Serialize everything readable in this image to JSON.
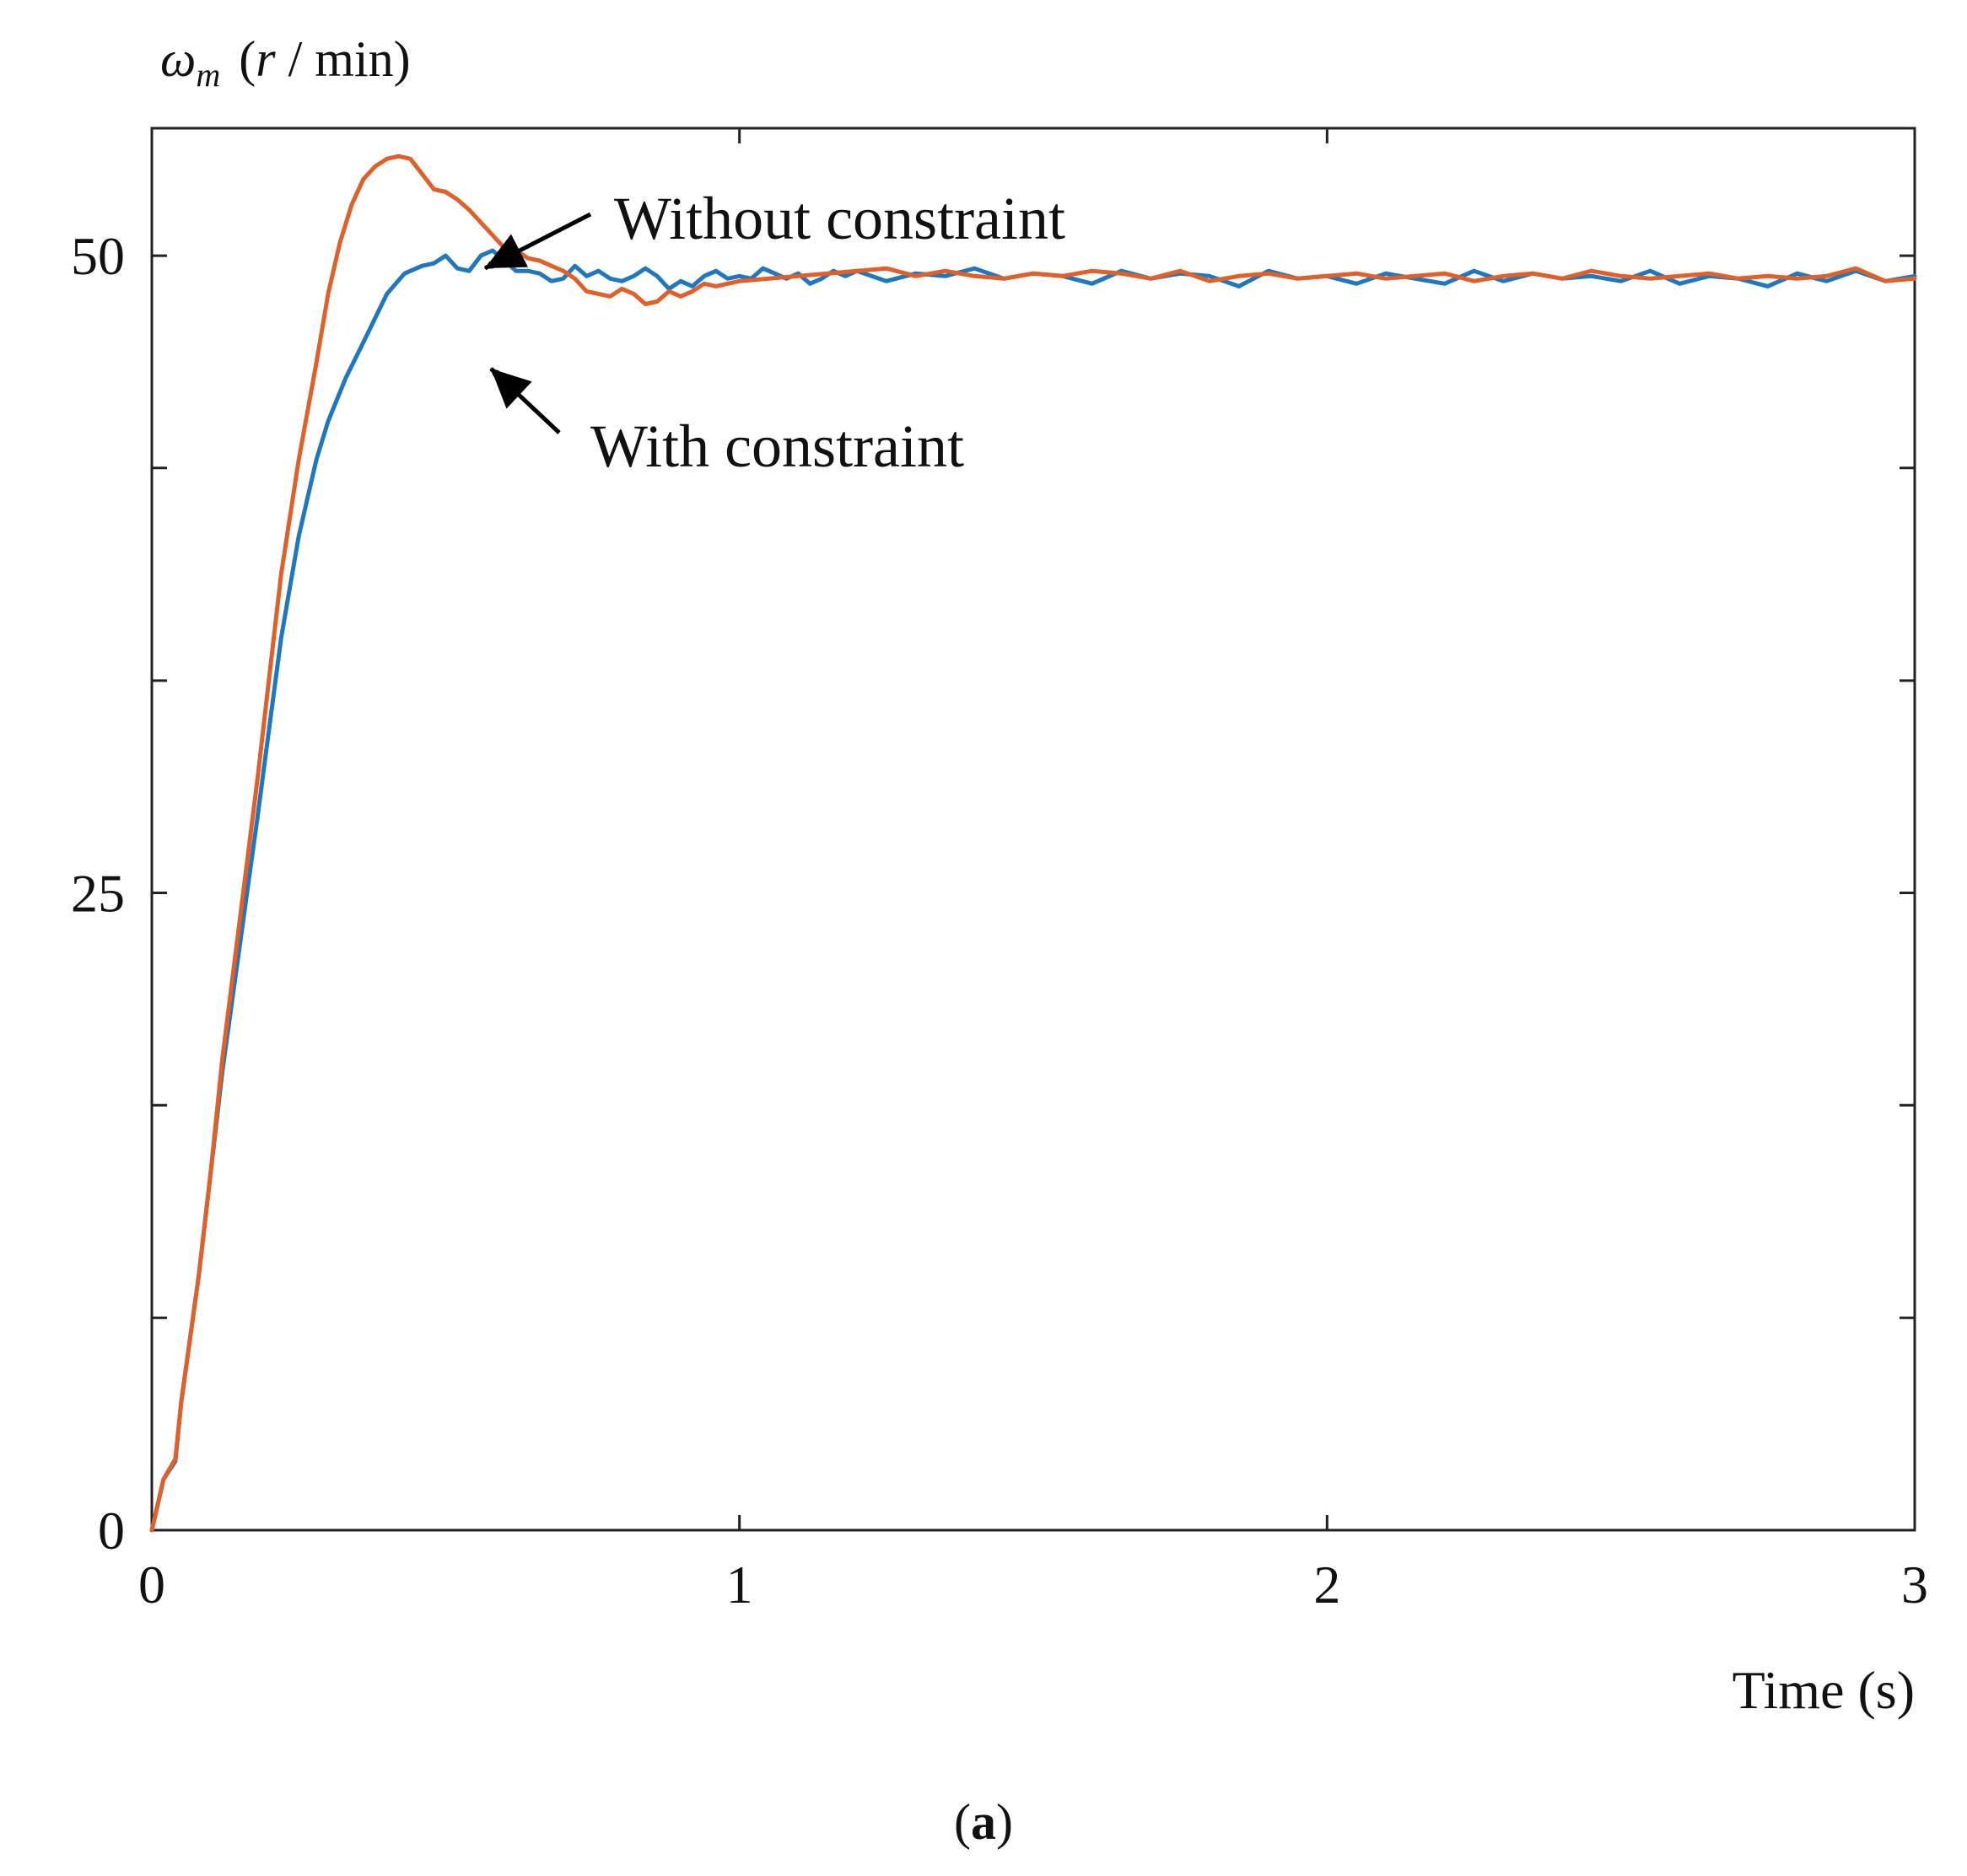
{
  "chart_data": {
    "type": "line",
    "title": "",
    "xlabel": "Time (s)",
    "ylabel": {
      "symbol": "ω",
      "subscript": "m",
      "unit_open": "(",
      "unit_var": "r",
      "unit_rest": " / min)"
    },
    "xlim": [
      0,
      3
    ],
    "ylim": [
      0,
      55
    ],
    "xticks": [
      0,
      1,
      2,
      3
    ],
    "xtick_labels": [
      "0",
      "1",
      "2",
      "3"
    ],
    "yticks": [
      0,
      25,
      50
    ],
    "ytick_labels": [
      "0",
      "25",
      "50"
    ],
    "yminor_ticks": [
      8.33,
      16.67,
      33.33,
      41.67
    ],
    "grid": false,
    "caption": {
      "open": "(",
      "letter": "a",
      "close": ")"
    },
    "annotations": [
      {
        "text": "Without constraint",
        "series": "Without constraint",
        "point": [
          0.54,
          52.5
        ]
      },
      {
        "text": "With constraint",
        "series": "With constraint",
        "point": [
          0.55,
          49.5
        ]
      }
    ],
    "series": [
      {
        "name": "With constraint",
        "color": "#1f77c0",
        "x": [
          0,
          0.02,
          0.04,
          0.05,
          0.08,
          0.1,
          0.12,
          0.15,
          0.18,
          0.2,
          0.22,
          0.25,
          0.28,
          0.3,
          0.33,
          0.36,
          0.4,
          0.43,
          0.46,
          0.48,
          0.5,
          0.52,
          0.54,
          0.56,
          0.58,
          0.6,
          0.62,
          0.64,
          0.66,
          0.68,
          0.7,
          0.72,
          0.74,
          0.76,
          0.78,
          0.8,
          0.82,
          0.84,
          0.86,
          0.88,
          0.9,
          0.92,
          0.94,
          0.96,
          0.98,
          1.0,
          1.02,
          1.04,
          1.06,
          1.08,
          1.1,
          1.12,
          1.14,
          1.16,
          1.18,
          1.2,
          1.25,
          1.3,
          1.35,
          1.4,
          1.45,
          1.5,
          1.55,
          1.6,
          1.65,
          1.7,
          1.75,
          1.8,
          1.85,
          1.9,
          1.95,
          2.0,
          2.05,
          2.1,
          2.15,
          2.2,
          2.25,
          2.3,
          2.35,
          2.4,
          2.45,
          2.5,
          2.55,
          2.6,
          2.65,
          2.7,
          2.75,
          2.8,
          2.85,
          2.9,
          2.95,
          3.0
        ],
        "y": [
          0,
          2.0,
          2.7,
          5.0,
          10.0,
          14.0,
          18.0,
          23.0,
          28.0,
          31.5,
          35.0,
          39.0,
          42.0,
          43.5,
          45.2,
          46.6,
          48.5,
          49.3,
          49.6,
          49.7,
          50.0,
          49.5,
          49.4,
          50.0,
          50.2,
          49.8,
          49.4,
          49.4,
          49.3,
          49.0,
          49.1,
          49.6,
          49.2,
          49.4,
          49.1,
          49.0,
          49.2,
          49.5,
          49.2,
          48.7,
          49.0,
          48.8,
          49.2,
          49.4,
          49.1,
          49.2,
          49.1,
          49.5,
          49.3,
          49.1,
          49.3,
          48.9,
          49.1,
          49.4,
          49.2,
          49.4,
          49.0,
          49.3,
          49.2,
          49.5,
          49.1,
          49.3,
          49.2,
          48.9,
          49.4,
          49.1,
          49.3,
          49.2,
          48.8,
          49.4,
          49.1,
          49.2,
          48.9,
          49.3,
          49.1,
          48.9,
          49.4,
          49.0,
          49.3,
          49.1,
          49.2,
          49.0,
          49.4,
          48.9,
          49.2,
          49.1,
          48.8,
          49.3,
          49.0,
          49.4,
          49.0,
          49.2
        ]
      },
      {
        "name": "Without constraint",
        "color": "#e0602a",
        "x": [
          0,
          0.02,
          0.04,
          0.05,
          0.08,
          0.1,
          0.12,
          0.15,
          0.18,
          0.2,
          0.22,
          0.25,
          0.28,
          0.3,
          0.32,
          0.34,
          0.36,
          0.38,
          0.4,
          0.42,
          0.44,
          0.46,
          0.48,
          0.5,
          0.52,
          0.54,
          0.56,
          0.58,
          0.6,
          0.62,
          0.64,
          0.66,
          0.68,
          0.7,
          0.72,
          0.74,
          0.76,
          0.78,
          0.8,
          0.82,
          0.84,
          0.86,
          0.88,
          0.9,
          0.92,
          0.94,
          0.96,
          0.98,
          1.0,
          1.05,
          1.1,
          1.15,
          1.2,
          1.25,
          1.3,
          1.35,
          1.4,
          1.45,
          1.5,
          1.55,
          1.6,
          1.65,
          1.7,
          1.75,
          1.8,
          1.85,
          1.9,
          1.95,
          2.0,
          2.05,
          2.1,
          2.15,
          2.2,
          2.25,
          2.3,
          2.35,
          2.4,
          2.45,
          2.5,
          2.55,
          2.6,
          2.65,
          2.7,
          2.75,
          2.8,
          2.85,
          2.9,
          2.95,
          3.0
        ],
        "y": [
          0,
          2.0,
          2.8,
          5.0,
          10.0,
          14.0,
          18.5,
          24.0,
          29.5,
          33.5,
          37.5,
          42.0,
          45.8,
          48.5,
          50.5,
          52.0,
          53.0,
          53.5,
          53.8,
          53.9,
          53.8,
          53.2,
          52.6,
          52.5,
          52.2,
          51.8,
          51.3,
          50.8,
          50.3,
          50.2,
          49.9,
          49.8,
          49.6,
          49.4,
          49.1,
          48.6,
          48.5,
          48.4,
          48.7,
          48.5,
          48.1,
          48.2,
          48.6,
          48.4,
          48.6,
          48.9,
          48.8,
          48.9,
          49.0,
          49.1,
          49.2,
          49.3,
          49.4,
          49.5,
          49.2,
          49.4,
          49.2,
          49.1,
          49.3,
          49.2,
          49.4,
          49.3,
          49.1,
          49.4,
          49.0,
          49.2,
          49.3,
          49.1,
          49.2,
          49.3,
          49.1,
          49.2,
          49.3,
          49.0,
          49.2,
          49.3,
          49.1,
          49.4,
          49.2,
          49.1,
          49.2,
          49.3,
          49.1,
          49.2,
          49.1,
          49.2,
          49.5,
          49.0,
          49.1
        ]
      }
    ]
  }
}
